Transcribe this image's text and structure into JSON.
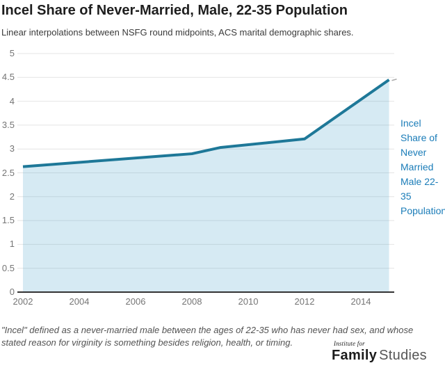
{
  "header": {
    "title": "Incel Share of Never-Married, Male, 22-35 Population",
    "subtitle": "Linear interpolations between NSFG round midpoints, ACS marital demographic shares."
  },
  "chart_data": {
    "type": "area",
    "series": [
      {
        "name": "Incel Share of Never Married Male 22-35 Population",
        "points": [
          {
            "year": 2002,
            "value": 2.63
          },
          {
            "year": 2008,
            "value": 2.9
          },
          {
            "year": 2009,
            "value": 3.03
          },
          {
            "year": 2012,
            "value": 3.21
          },
          {
            "year": 2015,
            "value": 4.45
          }
        ]
      }
    ],
    "x_ticks": [
      2002,
      2004,
      2006,
      2008,
      2010,
      2012,
      2014
    ],
    "x_range": [
      2002,
      2015
    ],
    "y_ticks": [
      0,
      0.5,
      1,
      1.5,
      2,
      2.5,
      3,
      3.5,
      4,
      4.5,
      5
    ],
    "y_range": [
      0,
      5
    ],
    "grid": true,
    "legend_position": "right",
    "title": "Incel Share of Never-Married, Male, 22-35 Population",
    "xlabel": "",
    "ylabel": "",
    "colors": {
      "line": "#1e7898",
      "fill": "rgba(70,160,200,0.22)",
      "series_label": "#1a7cb8",
      "gridline": "#e4e4e4",
      "axis": "#333333",
      "tick_label": "#757575",
      "connector": "#ababab"
    }
  },
  "footer": {
    "footnote": "\"Incel\" defined as a never-married male between the ages of 22-35 who has never had sex, and whose stated reason for virginity is something besides religion, health, or timing.",
    "logo": {
      "top": "Institute for",
      "name_bold": "Family",
      "name_light": "Studies"
    }
  }
}
